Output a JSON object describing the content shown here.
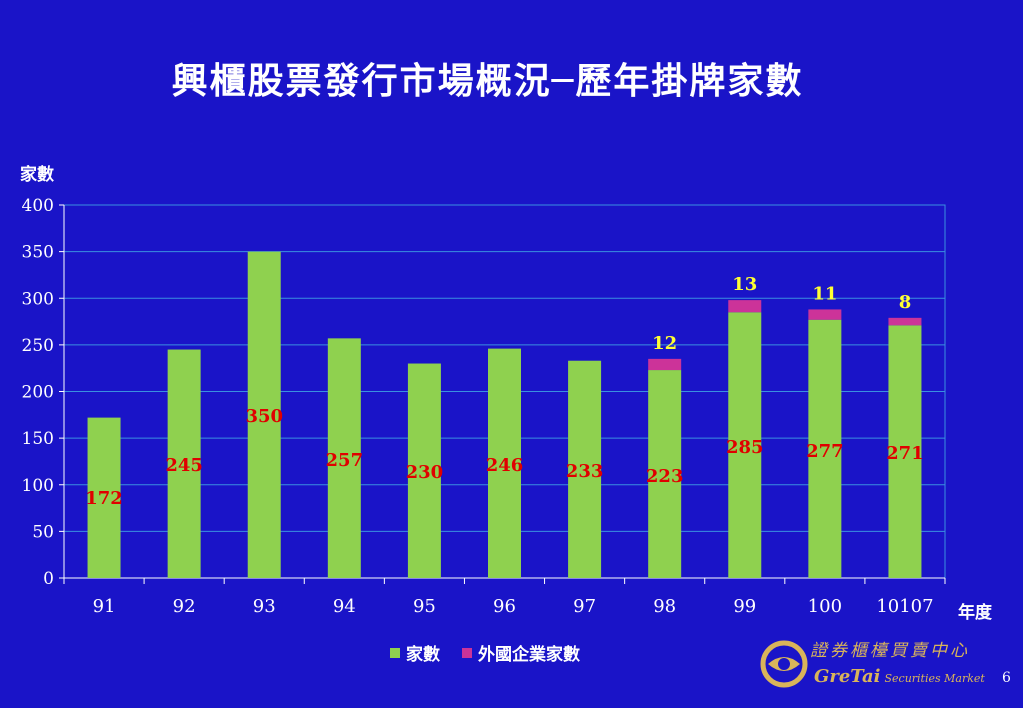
{
  "title": "興櫃股票發行市場概況─歷年掛牌家數",
  "page_number": "6",
  "logo": {
    "chinese": "證券櫃檯買賣中心",
    "english_brand": "GreTai",
    "english_sub": "Securities Market"
  },
  "colors": {
    "background": "#1a14c8",
    "base": "#8fd14f",
    "foreign": "#cc3399",
    "base_label": "#e00000",
    "foreign_label": "#ffff33",
    "axis_text": "#ffffff",
    "grid": "#3a8fe0"
  },
  "chart_data": {
    "type": "bar",
    "stacked": true,
    "ylabel": "家數",
    "xlabel": "年度",
    "ylim": [
      0,
      400
    ],
    "yticks": [
      0,
      50,
      100,
      150,
      200,
      250,
      300,
      350,
      400
    ],
    "grid": true,
    "legend_position": "bottom",
    "categories": [
      "91",
      "92",
      "93",
      "94",
      "95",
      "96",
      "97",
      "98",
      "99",
      "100",
      "10107"
    ],
    "series": [
      {
        "name": "家數",
        "values": [
          172,
          245,
          350,
          257,
          230,
          246,
          233,
          223,
          285,
          277,
          271
        ]
      },
      {
        "name": "外國企業家數",
        "values": [
          0,
          0,
          0,
          0,
          0,
          0,
          0,
          12,
          13,
          11,
          8
        ]
      }
    ],
    "base_labels": [
      "172",
      "245",
      "350",
      "257",
      "230",
      "246",
      "233",
      "223",
      "285",
      "277",
      "271"
    ],
    "foreign_labels": [
      "",
      "",
      "",
      "",
      "",
      "",
      "",
      "12",
      "13",
      "11",
      "8"
    ]
  }
}
